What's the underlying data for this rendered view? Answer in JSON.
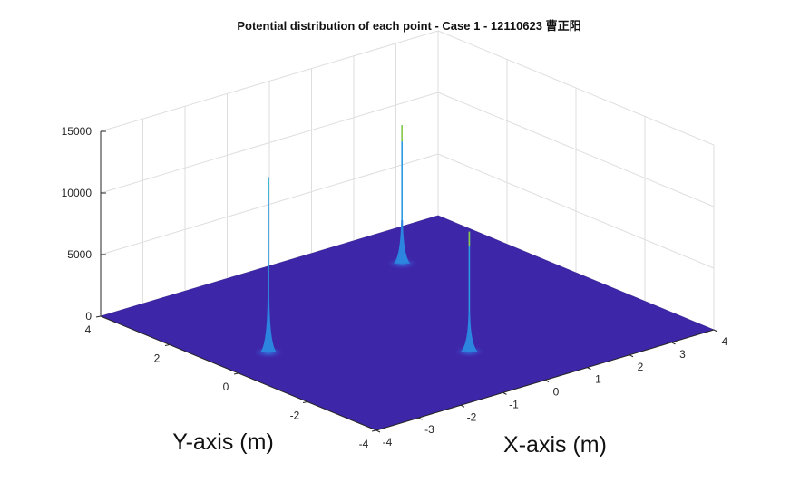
{
  "chart_data": {
    "type": "surface",
    "title": "Potential distribution of each point - Case 1 - 12110623 曹正阳",
    "xlabel": "X-axis (m)",
    "ylabel": "Y-axis (m)",
    "zlabel": "",
    "xlim": [
      -4,
      4
    ],
    "ylim": [
      -4,
      4
    ],
    "zlim": [
      0,
      15000
    ],
    "xticks": [
      -4,
      -3,
      -2,
      -1,
      0,
      1,
      2,
      3,
      4
    ],
    "yticks": [
      -4,
      -2,
      0,
      2,
      4
    ],
    "zticks": [
      0,
      5000,
      10000,
      15000
    ],
    "xtick_labels": [
      "-4",
      "-3",
      "-2",
      "-1",
      "0",
      "1",
      "2",
      "3",
      "4"
    ],
    "ytick_labels": [
      "-4",
      "-2",
      "0",
      "2",
      "4"
    ],
    "ztick_labels": [
      "0",
      "5000",
      "10000",
      "15000"
    ],
    "grid": true,
    "colormap": "parula",
    "surface_base_color": "#3e26a8",
    "peaks": [
      {
        "x": -2.8,
        "y": 0.6,
        "z": 14000,
        "tip_color": "#35b8d6"
      },
      {
        "x": 0.0,
        "y": -1.8,
        "z": 9500,
        "tip_color": "#8ccb4a"
      },
      {
        "x": 2.0,
        "y": 2.6,
        "z": 11000,
        "tip_color": "#8ccb4a"
      }
    ]
  }
}
